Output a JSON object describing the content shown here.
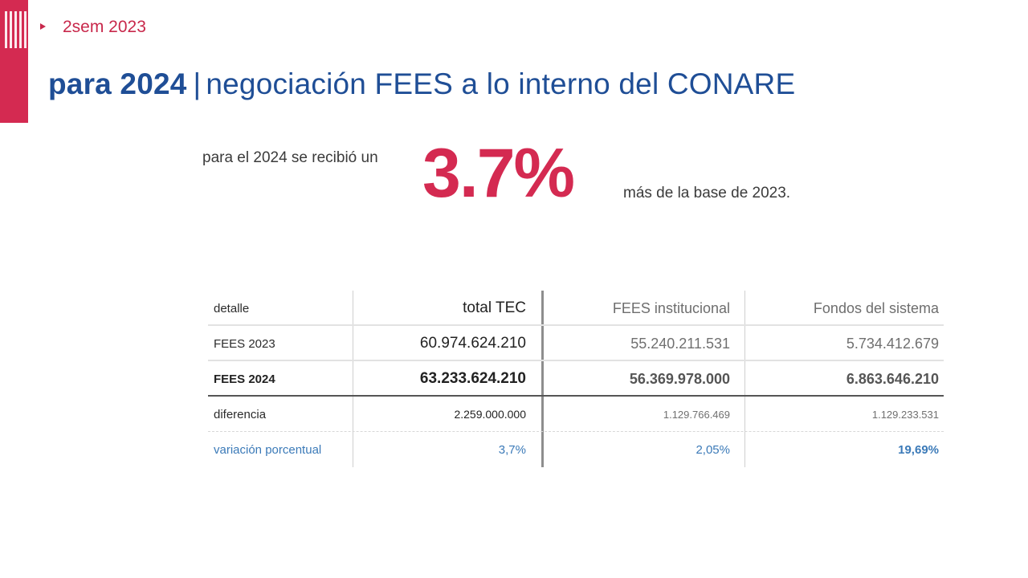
{
  "section": {
    "label": "2sem 2023"
  },
  "title": {
    "bold": "para 2024",
    "separator": "|",
    "rest": "negociación FEES a lo interno del CONARE"
  },
  "highlight": {
    "lead": "para el 2024 se recibió un",
    "value": "3.7%",
    "trail": "más de la base de 2023."
  },
  "colors": {
    "accent": "#d42a51",
    "title": "#1f4e96",
    "variation": "#3b7ab8"
  },
  "table": {
    "headers": [
      "detalle",
      "total  TEC",
      "FEES institucional",
      "Fondos del sistema"
    ],
    "rows": [
      [
        "FEES 2023",
        "60.974.624.210",
        "55.240.211.531",
        "5.734.412.679"
      ],
      [
        "FEES 2024",
        "63.233.624.210",
        "56.369.978.000",
        "6.863.646.210"
      ],
      [
        "diferencia",
        "2.259.000.000",
        "1.129.766.469",
        "1.129.233.531"
      ],
      [
        "variación porcentual",
        "3,7%",
        "2,05%",
        "19,69%"
      ]
    ]
  }
}
